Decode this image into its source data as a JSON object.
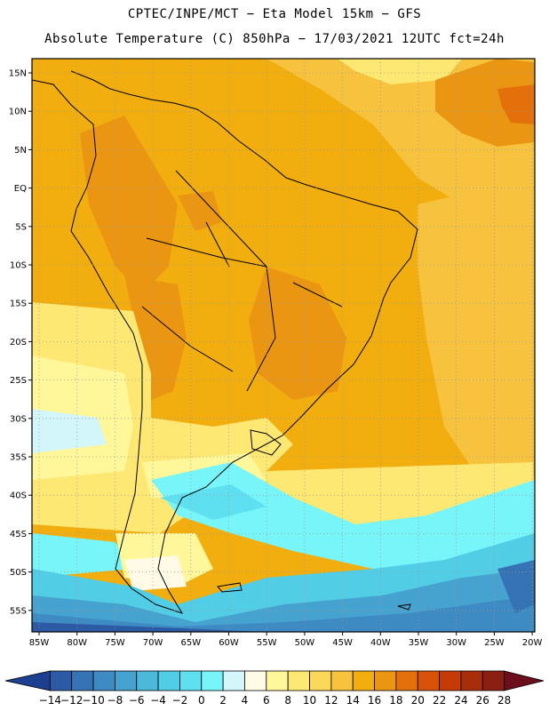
{
  "title": {
    "line1": "CPTEC/INPE/MCT −  Eta Model 15km − GFS",
    "line2": "Absolute Temperature (C) 850hPa − 17/03/2021 12UTC fct=24h"
  },
  "map": {
    "lat_labels": [
      "15N",
      "10N",
      "5N",
      "EQ",
      "5S",
      "10S",
      "15S",
      "20S",
      "25S",
      "30S",
      "35S",
      "40S",
      "45S",
      "50S",
      "55S"
    ],
    "lon_labels": [
      "85W",
      "80W",
      "75W",
      "70W",
      "65W",
      "60W",
      "55W",
      "50W",
      "45W",
      "40W",
      "35W",
      "30W",
      "25W",
      "20W"
    ]
  },
  "colorbar": {
    "labels": [
      "-14",
      "-12",
      "-10",
      "-8",
      "-6",
      "-4",
      "-2",
      "0",
      "2",
      "4",
      "6",
      "8",
      "10",
      "12",
      "14",
      "16",
      "18",
      "20",
      "22",
      "24",
      "26",
      "28"
    ],
    "colors": [
      "#1c3f8f",
      "#2c5aa5",
      "#3673b5",
      "#3e8ac3",
      "#46a2cf",
      "#4cb9db",
      "#52cde6",
      "#5fe0f0",
      "#78f5f8",
      "#d3f6fb",
      "#fffbe6",
      "#fff79a",
      "#fde873",
      "#fbd75a",
      "#f7c23d",
      "#f2ad0f",
      "#eb9612",
      "#e3700a",
      "#d8520a",
      "#c43b08",
      "#a82d0a",
      "#8a1f12",
      "#6c0f1c"
    ]
  }
}
